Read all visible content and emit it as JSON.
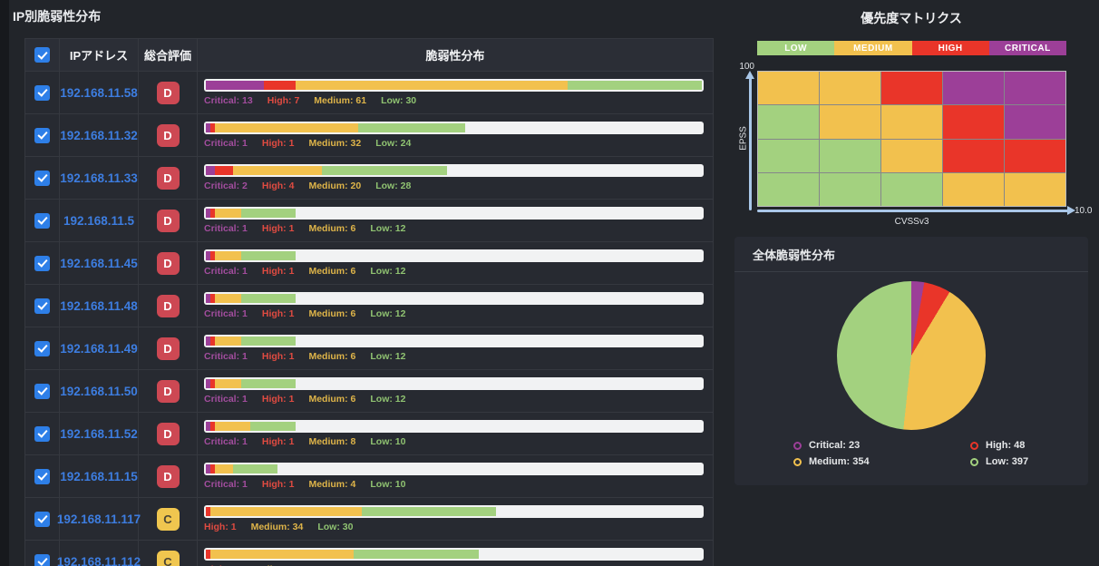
{
  "left_panel": {
    "title": "IP別脆弱性分布",
    "table": {
      "headers": {
        "ip": "IPアドレス",
        "grade": "総合評価",
        "distribution": "脆弱性分布"
      },
      "severity_labels": {
        "critical": "Critical",
        "high": "High",
        "medium": "Medium",
        "low": "Low"
      },
      "max_total": 111,
      "rows": [
        {
          "ip": "192.168.11.58",
          "grade": "D",
          "critical": 13,
          "high": 7,
          "medium": 61,
          "low": 30
        },
        {
          "ip": "192.168.11.32",
          "grade": "D",
          "critical": 1,
          "high": 1,
          "medium": 32,
          "low": 24
        },
        {
          "ip": "192.168.11.33",
          "grade": "D",
          "critical": 2,
          "high": 4,
          "medium": 20,
          "low": 28
        },
        {
          "ip": "192.168.11.5",
          "grade": "D",
          "critical": 1,
          "high": 1,
          "medium": 6,
          "low": 12
        },
        {
          "ip": "192.168.11.45",
          "grade": "D",
          "critical": 1,
          "high": 1,
          "medium": 6,
          "low": 12
        },
        {
          "ip": "192.168.11.48",
          "grade": "D",
          "critical": 1,
          "high": 1,
          "medium": 6,
          "low": 12
        },
        {
          "ip": "192.168.11.49",
          "grade": "D",
          "critical": 1,
          "high": 1,
          "medium": 6,
          "low": 12
        },
        {
          "ip": "192.168.11.50",
          "grade": "D",
          "critical": 1,
          "high": 1,
          "medium": 6,
          "low": 12
        },
        {
          "ip": "192.168.11.52",
          "grade": "D",
          "critical": 1,
          "high": 1,
          "medium": 8,
          "low": 10
        },
        {
          "ip": "192.168.11.15",
          "grade": "D",
          "critical": 1,
          "high": 1,
          "medium": 4,
          "low": 10
        },
        {
          "ip": "192.168.11.117",
          "grade": "C",
          "critical": 0,
          "high": 1,
          "medium": 34,
          "low": 30
        },
        {
          "ip": "192.168.11.112",
          "grade": "C",
          "critical": 0,
          "high": 1,
          "medium": 32,
          "low": 28
        }
      ]
    }
  },
  "right_panel": {
    "matrix": {
      "title": "優先度マトリクス",
      "legend": [
        {
          "label": "LOW",
          "key": "low"
        },
        {
          "label": "MEDIUM",
          "key": "medium"
        },
        {
          "label": "HIGH",
          "key": "high"
        },
        {
          "label": "CRITICAL",
          "key": "critical"
        }
      ],
      "y_axis": {
        "label": "EPSS",
        "max": "100"
      },
      "x_axis": {
        "label": "CVSSv3",
        "max": "10.0"
      },
      "cells": [
        [
          "medium",
          "medium",
          "high",
          "critical",
          "critical"
        ],
        [
          "low",
          "medium",
          "medium",
          "high",
          "critical"
        ],
        [
          "low",
          "low",
          "medium",
          "high",
          "high"
        ],
        [
          "low",
          "low",
          "low",
          "medium",
          "medium"
        ]
      ]
    },
    "pie_card": {
      "title": "全体脆弱性分布",
      "legend": [
        {
          "label": "Critical",
          "value": 23,
          "key": "critical"
        },
        {
          "label": "High",
          "value": 48,
          "key": "high"
        },
        {
          "label": "Medium",
          "value": 354,
          "key": "medium"
        },
        {
          "label": "Low",
          "value": 397,
          "key": "low"
        }
      ]
    }
  },
  "colors": {
    "critical": "#9c3f98",
    "high": "#e93529",
    "medium": "#f2c14e",
    "low": "#a3d17f",
    "label_critical": "#a24d9e",
    "label_high": "#df4b41",
    "label_medium": "#deb449",
    "label_low": "#8fc271",
    "grade_d": "#cd4853",
    "grade_c": "#f0c64f",
    "checkbox": "#2e7fe8",
    "ip_link": "#3d7de0",
    "axis": "#a9c7e8"
  },
  "chart_data": [
    {
      "type": "heatmap",
      "title": "優先度マトリクス",
      "xlabel": "CVSSv3",
      "ylabel": "EPSS",
      "x_max_label": "10.0",
      "y_max_label": "100",
      "legend": [
        "LOW",
        "MEDIUM",
        "HIGH",
        "CRITICAL"
      ],
      "rows_top_to_bottom": [
        [
          "MEDIUM",
          "MEDIUM",
          "HIGH",
          "CRITICAL",
          "CRITICAL"
        ],
        [
          "LOW",
          "MEDIUM",
          "MEDIUM",
          "HIGH",
          "CRITICAL"
        ],
        [
          "LOW",
          "LOW",
          "MEDIUM",
          "HIGH",
          "HIGH"
        ],
        [
          "LOW",
          "LOW",
          "LOW",
          "MEDIUM",
          "MEDIUM"
        ]
      ]
    },
    {
      "type": "pie",
      "title": "全体脆弱性分布",
      "categories": [
        "Critical",
        "High",
        "Medium",
        "Low"
      ],
      "values": [
        23,
        48,
        354,
        397
      ],
      "legend_position": "bottom"
    }
  ]
}
